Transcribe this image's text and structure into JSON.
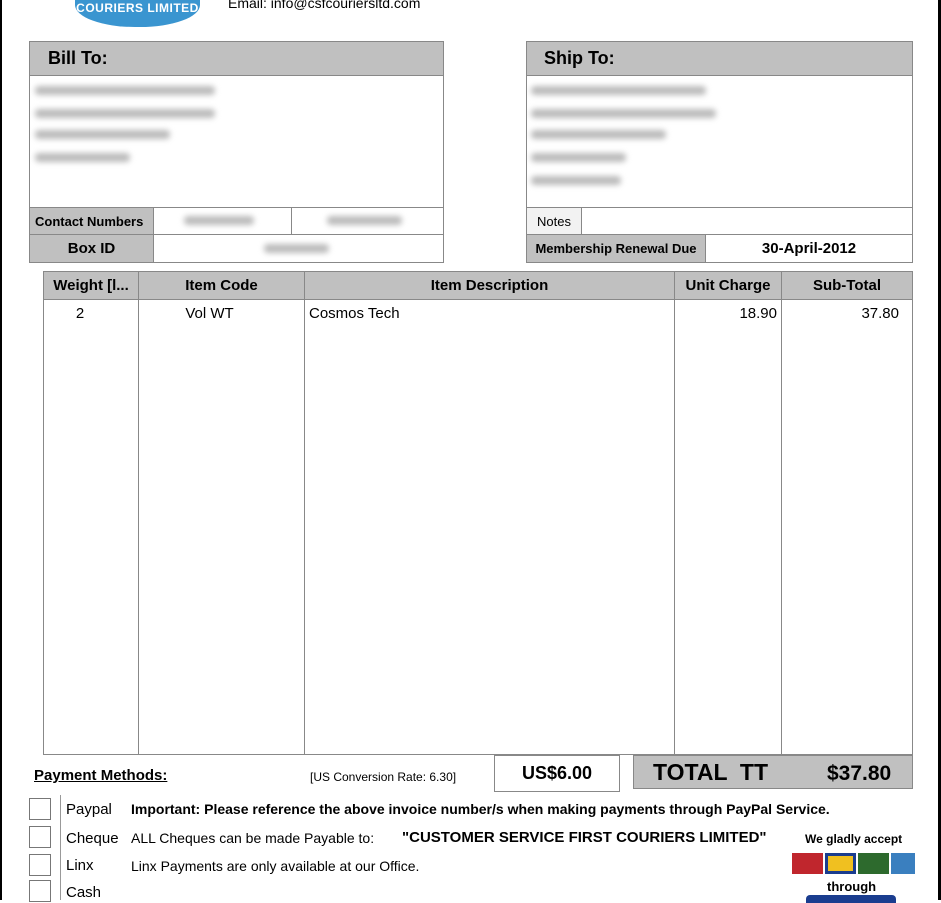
{
  "header": {
    "logo_text": "COURIERS LIMITED",
    "email": "Email: info@csfcouriersltd.com"
  },
  "bill_to": {
    "title": "Bill To:",
    "contact_label": "Contact Numbers",
    "box_id_label": "Box ID"
  },
  "ship_to": {
    "title": "Ship To:",
    "notes_label": "Notes",
    "membership_label": "Membership Renewal Due",
    "membership_value": "30-April-2012"
  },
  "table": {
    "columns": [
      "Weight [l...",
      "Item Code",
      "Item Description",
      "Unit Charge",
      "Sub-Total"
    ],
    "rows": [
      {
        "weight": "2",
        "code": "Vol WT",
        "description": "Cosmos Tech",
        "unit": "18.90",
        "subtotal": "37.80"
      }
    ]
  },
  "totals": {
    "payment_methods": "Payment Methods:",
    "conversion": "[US Conversion Rate: 6.30]",
    "usd": "US$6.00",
    "total_label": "TOTAL  TT",
    "total_value": "$37.80"
  },
  "payments": [
    {
      "method": "Paypal",
      "note": "Important: Please reference the above invoice number/s when making payments through PayPal Service."
    },
    {
      "method": "Cheque",
      "note": "ALL Cheques can be made Payable to:",
      "payee": "\"CUSTOMER SERVICE FIRST COURIERS LIMITED\""
    },
    {
      "method": "Linx",
      "note": "Linx Payments are only available at our Office."
    },
    {
      "method": "Cash",
      "note": ""
    }
  ],
  "accept": {
    "line1": "We gladly accept",
    "line2": "through"
  }
}
